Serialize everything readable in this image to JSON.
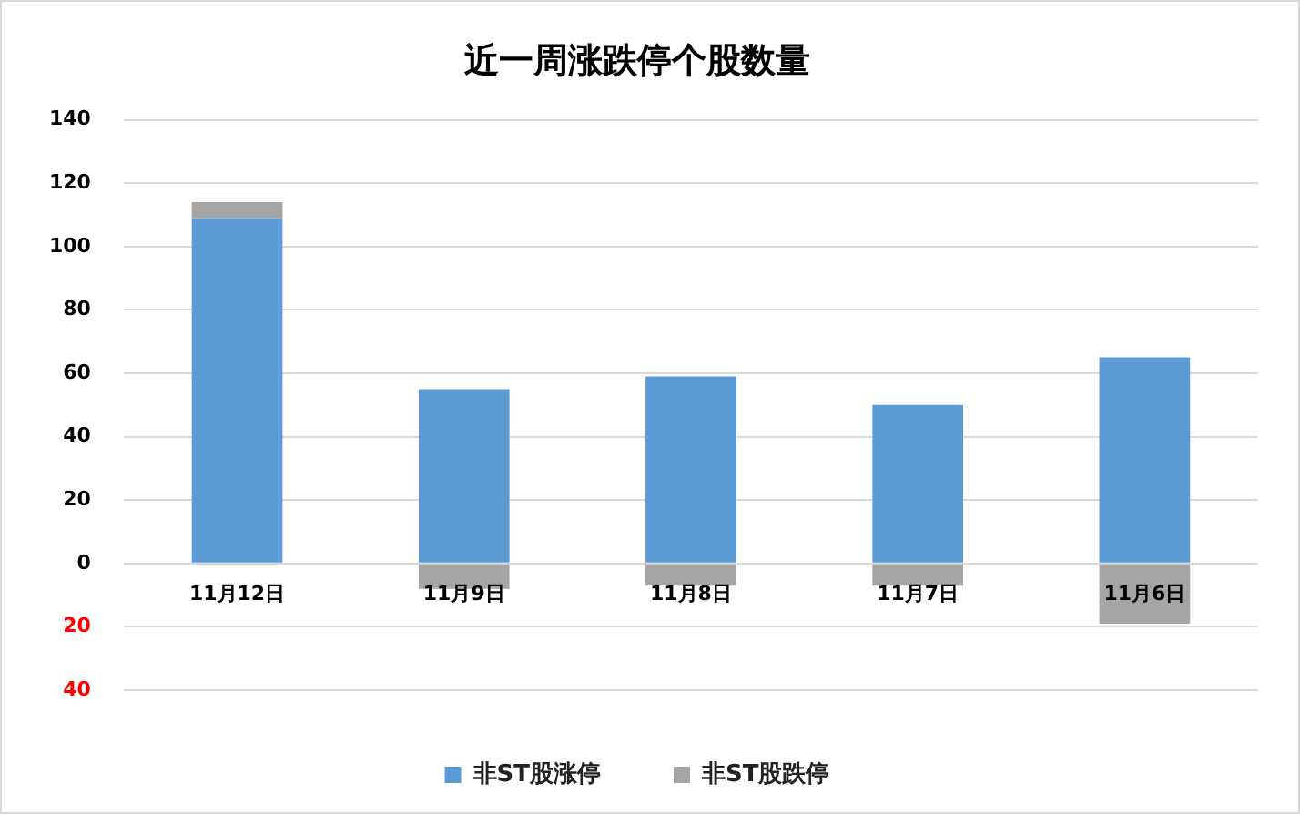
{
  "chart_data": {
    "type": "bar",
    "title": "近一周涨跌停个股数量",
    "categories": [
      "11月12日",
      "11月9日",
      "11月8日",
      "11月7日",
      "11月6日"
    ],
    "stacked": true,
    "series": [
      {
        "name": "非ST股涨停",
        "color": "#5b9bd5",
        "values": [
          109,
          55,
          59,
          50,
          65
        ]
      },
      {
        "name": "非ST股跌停",
        "color": "#a5a5a5",
        "values": [
          5,
          -8,
          -7,
          -7,
          -19
        ]
      }
    ],
    "ylim": [
      -40,
      140
    ],
    "yticks": [
      {
        "value": -40,
        "label": "40"
      },
      {
        "value": -20,
        "label": "20"
      },
      0,
      20,
      40,
      60,
      80,
      100,
      120,
      140
    ],
    "grid": "y",
    "legend": "bottom"
  }
}
